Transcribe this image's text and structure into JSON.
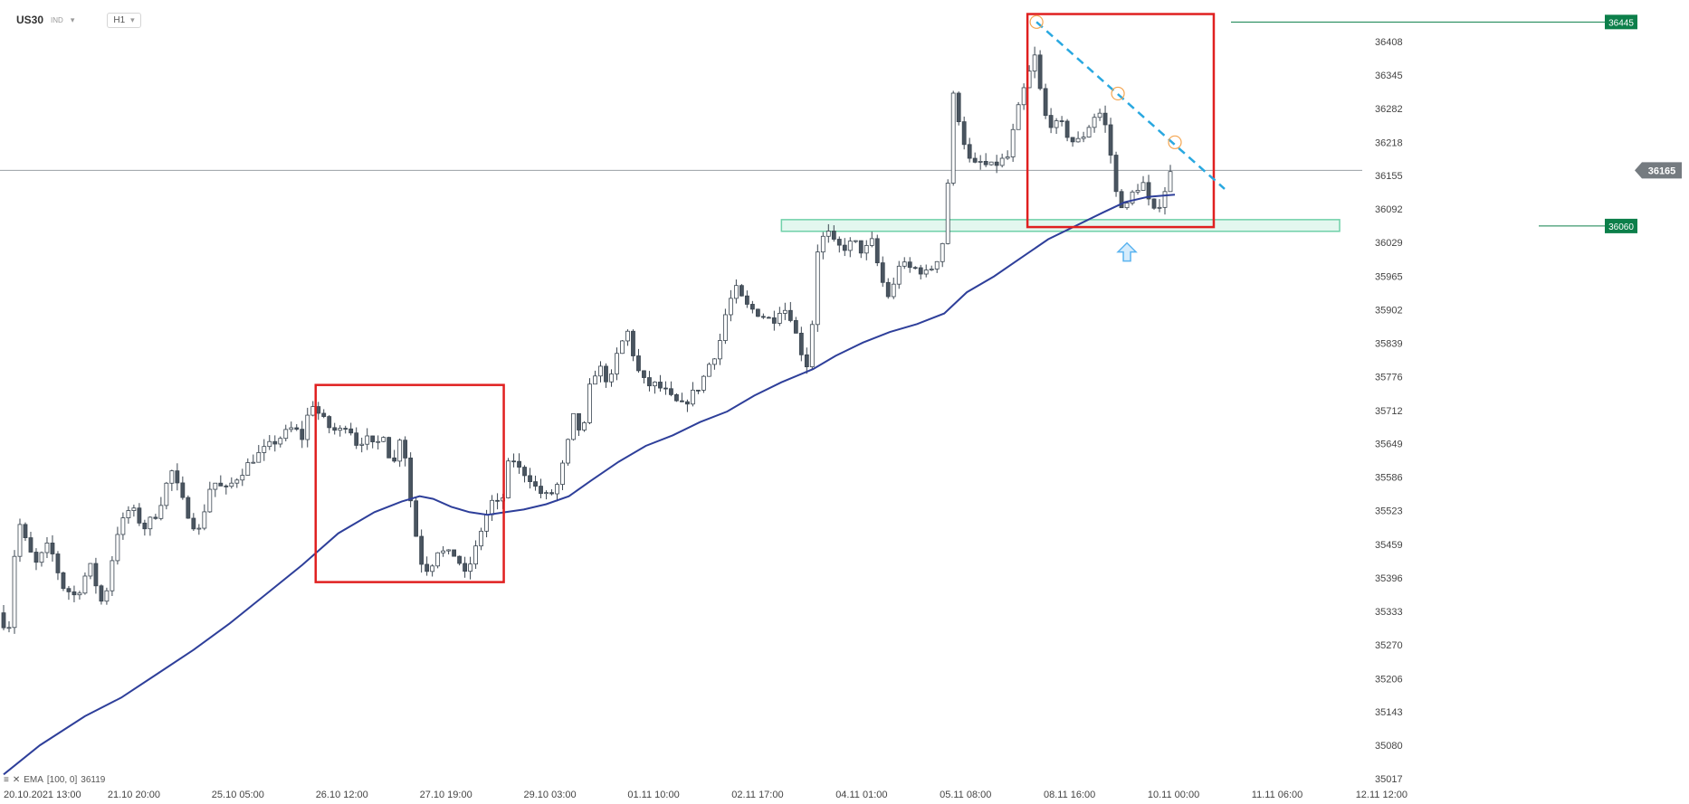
{
  "header": {
    "symbol": "US30",
    "instrument_type": "IND",
    "timeframe": "H1"
  },
  "indicator": {
    "label": "EMA",
    "params": "[100, 0]",
    "value": "36119"
  },
  "colors": {
    "bull": "#ffffff",
    "bear": "#4a5560",
    "wick": "#3a4550",
    "ema": "#2e3f9a",
    "box": "#e02020",
    "trendline": "#29a8e0",
    "zone_fill": "#e3f7ef",
    "zone_stroke": "#6fd0a9",
    "label_green": "#0c7f4a",
    "label_gray": "#757b80",
    "marker_circle": "#f4a652",
    "arrow": "#5bb4f0",
    "grid_line": "#9aa0a4"
  },
  "chart_data": {
    "type": "candlestick",
    "y_axis": {
      "ticks": [
        "36408",
        "36345",
        "36282",
        "36218",
        "36155",
        "36092",
        "36029",
        "35965",
        "35902",
        "35839",
        "35776",
        "35712",
        "35649",
        "35586",
        "35523",
        "35459",
        "35396",
        "35333",
        "35270",
        "35206",
        "35143",
        "35080",
        "35017"
      ],
      "range": [
        35017,
        36470
      ]
    },
    "x_axis": {
      "ticks": [
        "20.10.2021 13:00",
        "21.10 20:00",
        "25.10 05:00",
        "26.10 12:00",
        "27.10 19:00",
        "29.10 03:00",
        "01.11 10:00",
        "02.11 17:00",
        "04.11 01:00",
        "05.11 08:00",
        "08.11 16:00",
        "10.11 00:00",
        "11.11 06:00",
        "12.11 12:00"
      ]
    },
    "current_price": "36165",
    "price_labels": [
      {
        "value": "36445",
        "style": "green"
      },
      {
        "value": "36060",
        "style": "green"
      },
      {
        "value": "36165",
        "style": "current"
      }
    ],
    "price_path": [
      [
        0,
        35330
      ],
      [
        10,
        35290
      ],
      [
        20,
        35510
      ],
      [
        30,
        35460
      ],
      [
        40,
        35420
      ],
      [
        55,
        35460
      ],
      [
        70,
        35380
      ],
      [
        85,
        35360
      ],
      [
        100,
        35420
      ],
      [
        115,
        35340
      ],
      [
        130,
        35480
      ],
      [
        145,
        35530
      ],
      [
        160,
        35490
      ],
      [
        175,
        35520
      ],
      [
        190,
        35600
      ],
      [
        205,
        35530
      ],
      [
        220,
        35480
      ],
      [
        235,
        35580
      ],
      [
        250,
        35560
      ],
      [
        265,
        35590
      ],
      [
        280,
        35620
      ],
      [
        295,
        35640
      ],
      [
        310,
        35660
      ],
      [
        325,
        35680
      ],
      [
        335,
        35660
      ],
      [
        345,
        35730
      ],
      [
        355,
        35700
      ],
      [
        365,
        35680
      ],
      [
        375,
        35670
      ],
      [
        385,
        35690
      ],
      [
        395,
        35650
      ],
      [
        405,
        35660
      ],
      [
        415,
        35640
      ],
      [
        425,
        35670
      ],
      [
        435,
        35600
      ],
      [
        445,
        35680
      ],
      [
        455,
        35540
      ],
      [
        465,
        35430
      ],
      [
        475,
        35410
      ],
      [
        485,
        35450
      ],
      [
        495,
        35440
      ],
      [
        505,
        35440
      ],
      [
        515,
        35400
      ],
      [
        525,
        35440
      ],
      [
        535,
        35500
      ],
      [
        545,
        35540
      ],
      [
        555,
        35530
      ],
      [
        565,
        35630
      ],
      [
        575,
        35600
      ],
      [
        585,
        35590
      ],
      [
        595,
        35560
      ],
      [
        605,
        35550
      ],
      [
        615,
        35560
      ],
      [
        625,
        35620
      ],
      [
        635,
        35700
      ],
      [
        645,
        35660
      ],
      [
        655,
        35780
      ],
      [
        665,
        35790
      ],
      [
        675,
        35760
      ],
      [
        685,
        35830
      ],
      [
        695,
        35860
      ],
      [
        705,
        35790
      ],
      [
        715,
        35760
      ],
      [
        725,
        35760
      ],
      [
        735,
        35750
      ],
      [
        745,
        35730
      ],
      [
        755,
        35720
      ],
      [
        765,
        35740
      ],
      [
        775,
        35760
      ],
      [
        785,
        35800
      ],
      [
        795,
        35830
      ],
      [
        805,
        35910
      ],
      [
        815,
        35940
      ],
      [
        825,
        35910
      ],
      [
        835,
        35900
      ],
      [
        845,
        35890
      ],
      [
        855,
        35880
      ],
      [
        865,
        35910
      ],
      [
        875,
        35890
      ],
      [
        885,
        35830
      ],
      [
        895,
        35790
      ],
      [
        905,
        36020
      ],
      [
        915,
        36050
      ],
      [
        925,
        36020
      ],
      [
        935,
        36020
      ],
      [
        945,
        36030
      ],
      [
        955,
        36010
      ],
      [
        965,
        36030
      ],
      [
        975,
        35960
      ],
      [
        985,
        35920
      ],
      [
        995,
        35990
      ],
      [
        1005,
        35980
      ],
      [
        1015,
        35980
      ],
      [
        1025,
        35970
      ],
      [
        1035,
        35990
      ],
      [
        1045,
        36040
      ],
      [
        1055,
        36310
      ],
      [
        1065,
        36230
      ],
      [
        1075,
        36170
      ],
      [
        1085,
        36180
      ],
      [
        1095,
        36170
      ],
      [
        1105,
        36180
      ],
      [
        1115,
        36190
      ],
      [
        1125,
        36270
      ],
      [
        1135,
        36330
      ],
      [
        1145,
        36380
      ],
      [
        1155,
        36270
      ],
      [
        1165,
        36250
      ],
      [
        1175,
        36250
      ],
      [
        1185,
        36220
      ],
      [
        1195,
        36220
      ],
      [
        1205,
        36250
      ],
      [
        1215,
        36280
      ],
      [
        1225,
        36240
      ],
      [
        1235,
        36120
      ],
      [
        1245,
        36090
      ],
      [
        1255,
        36130
      ],
      [
        1265,
        36140
      ],
      [
        1275,
        36080
      ],
      [
        1285,
        36110
      ],
      [
        1295,
        36160
      ]
    ],
    "ema_path": [
      [
        0,
        35025
      ],
      [
        40,
        35080
      ],
      [
        90,
        35135
      ],
      [
        130,
        35170
      ],
      [
        170,
        35215
      ],
      [
        210,
        35260
      ],
      [
        250,
        35310
      ],
      [
        290,
        35365
      ],
      [
        330,
        35420
      ],
      [
        370,
        35480
      ],
      [
        410,
        35520
      ],
      [
        440,
        35540
      ],
      [
        460,
        35550
      ],
      [
        475,
        35545
      ],
      [
        495,
        35530
      ],
      [
        515,
        35520
      ],
      [
        535,
        35515
      ],
      [
        555,
        35520
      ],
      [
        575,
        35525
      ],
      [
        600,
        35535
      ],
      [
        625,
        35550
      ],
      [
        650,
        35580
      ],
      [
        680,
        35615
      ],
      [
        710,
        35645
      ],
      [
        740,
        35665
      ],
      [
        770,
        35690
      ],
      [
        800,
        35710
      ],
      [
        830,
        35740
      ],
      [
        860,
        35765
      ],
      [
        895,
        35790
      ],
      [
        920,
        35815
      ],
      [
        950,
        35840
      ],
      [
        980,
        35860
      ],
      [
        1010,
        35875
      ],
      [
        1040,
        35895
      ],
      [
        1065,
        35935
      ],
      [
        1095,
        35965
      ],
      [
        1125,
        36000
      ],
      [
        1155,
        36035
      ],
      [
        1185,
        36060
      ],
      [
        1215,
        36085
      ],
      [
        1240,
        36105
      ],
      [
        1265,
        36115
      ],
      [
        1295,
        36119
      ]
    ],
    "annotations": [
      {
        "kind": "box",
        "from": [
          345,
          35760
        ],
        "to": [
          553,
          35388
        ]
      },
      {
        "kind": "box",
        "from": [
          1132,
          36460
        ],
        "to": [
          1338,
          36058
        ]
      },
      {
        "kind": "zone",
        "from": [
          860,
          36072
        ],
        "to": [
          1480,
          36050
        ]
      },
      {
        "kind": "trendline",
        "from": [
          1142,
          36445
        ],
        "to": [
          1350,
          36130
        ]
      },
      {
        "kind": "circle",
        "at": [
          1142,
          36445
        ]
      },
      {
        "kind": "circle",
        "at": [
          1232,
          36310
        ]
      },
      {
        "kind": "circle",
        "at": [
          1295,
          36218
        ]
      },
      {
        "kind": "arrow_up",
        "at": [
          1242,
          36028
        ]
      }
    ]
  }
}
